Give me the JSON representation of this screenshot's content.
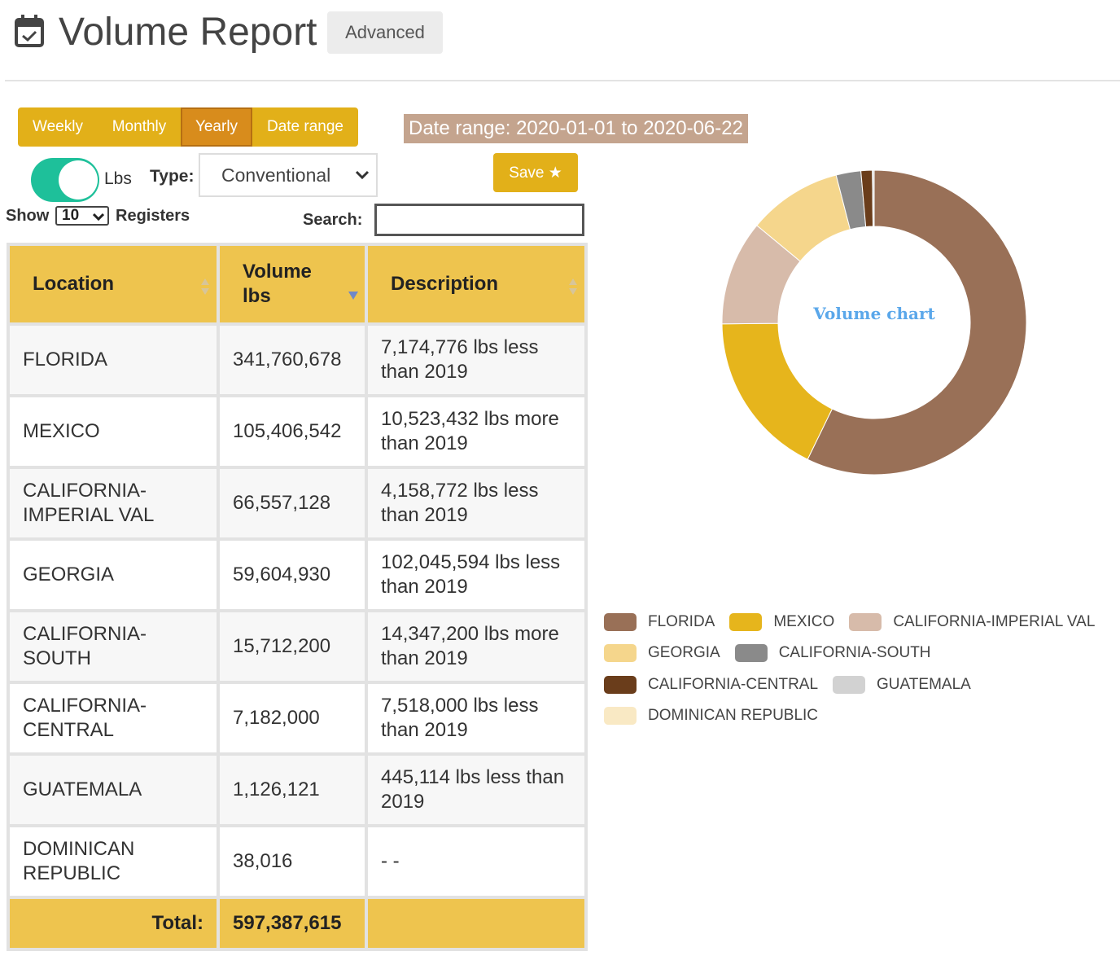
{
  "header": {
    "title": "Volume Report",
    "advanced_label": "Advanced"
  },
  "period_tabs": [
    {
      "label": "Weekly",
      "active": false
    },
    {
      "label": "Monthly",
      "active": false
    },
    {
      "label": "Yearly",
      "active": true
    },
    {
      "label": "Date range",
      "active": false
    }
  ],
  "date_range_text": "Date range: 2020-01-01 to 2020-06-22",
  "unit_toggle": {
    "label": "Lbs",
    "on": true
  },
  "type_filter": {
    "label": "Type:",
    "value": "Conventional"
  },
  "save_label": "Save ★",
  "paging": {
    "show_label": "Show",
    "page_size": "10",
    "registers_label": "Registers"
  },
  "search": {
    "label": "Search:",
    "value": ""
  },
  "table": {
    "headers": {
      "location": "Location",
      "volume": "Volume lbs",
      "description": "Description"
    },
    "rows": [
      {
        "location": "FLORIDA",
        "volume": "341,760,678",
        "description": "7,174,776 lbs less than 2019"
      },
      {
        "location": "MEXICO",
        "volume": "105,406,542",
        "description": "10,523,432 lbs more than 2019"
      },
      {
        "location": "CALIFORNIA-IMPERIAL VAL",
        "volume": "66,557,128",
        "description": "4,158,772 lbs less than 2019"
      },
      {
        "location": "GEORGIA",
        "volume": "59,604,930",
        "description": "102,045,594 lbs less than 2019"
      },
      {
        "location": "CALIFORNIA-SOUTH",
        "volume": "15,712,200",
        "description": "14,347,200 lbs more than 2019"
      },
      {
        "location": "CALIFORNIA-CENTRAL",
        "volume": "7,182,000",
        "description": "7,518,000 lbs less than 2019"
      },
      {
        "location": "GUATEMALA",
        "volume": "1,126,121",
        "description": "445,114 lbs less than 2019"
      },
      {
        "location": "DOMINICAN REPUBLIC",
        "volume": "38,016",
        "description": "- -"
      }
    ],
    "total_label": "Total:",
    "total_value": "597,387,615"
  },
  "chart_data": {
    "type": "pie",
    "title": "Volume chart",
    "categories": [
      "FLORIDA",
      "MEXICO",
      "CALIFORNIA-IMPERIAL VAL",
      "GEORGIA",
      "CALIFORNIA-SOUTH",
      "CALIFORNIA-CENTRAL",
      "GUATEMALA",
      "DOMINICAN REPUBLIC"
    ],
    "values": [
      341760678,
      105406542,
      66557128,
      59604930,
      15712200,
      7182000,
      1126121,
      38016
    ],
    "colors": [
      "#997057",
      "#e6b51c",
      "#d7bbaa",
      "#f5d68c",
      "#8a8a8a",
      "#6a3d1b",
      "#d2d2d2",
      "#f9e9c4"
    ],
    "legend_position": "bottom"
  },
  "colors": {
    "accent": "#e2b019",
    "active_tab": "#d88c1c",
    "table_header": "#eec44e",
    "toggle_on": "#1ec09a",
    "date_badge": "#c4a48e",
    "chart_title": "#5aa7ea"
  },
  "icons": {
    "header": "calendar-check-icon",
    "save": "star-icon",
    "type_dropdown": "chevron-down-icon",
    "sort": "sort-icon"
  }
}
